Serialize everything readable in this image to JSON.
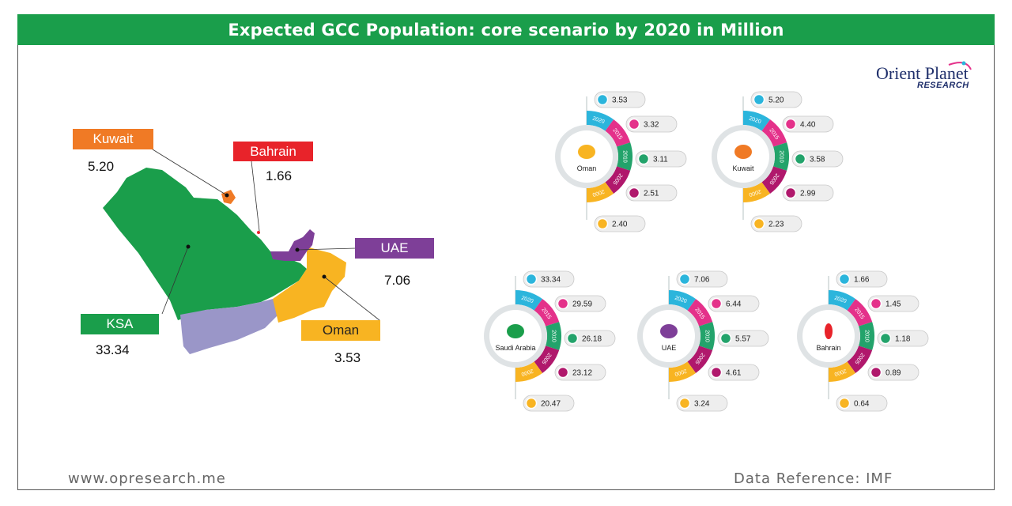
{
  "title": "Expected GCC Population: core scenario by 2020 in Million",
  "logo": {
    "main": "Orient Planet",
    "sub": "RESEARCH"
  },
  "map_labels": [
    {
      "name": "Kuwait",
      "value": "5.20",
      "color": "#f07a25"
    },
    {
      "name": "Bahrain",
      "value": "1.66",
      "color": "#e8232a"
    },
    {
      "name": "UAE",
      "value": "7.06",
      "color": "#7e3f98"
    },
    {
      "name": "KSA",
      "value": "33.34",
      "color": "#1a9e4b"
    },
    {
      "name": "Oman",
      "value": "3.53",
      "color": "#f8b422"
    }
  ],
  "years": [
    "2020",
    "2015",
    "2010",
    "2005",
    "2000"
  ],
  "year_colors": [
    "#2bb5dc",
    "#e4318a",
    "#23a36b",
    "#b0186c",
    "#f8b422"
  ],
  "chart_data": {
    "type": "table",
    "columns": [
      "2020",
      "2015",
      "2010",
      "2005",
      "2000"
    ],
    "rows": [
      {
        "country": "Oman",
        "values": [
          "3.53",
          "3.32",
          "3.11",
          "2.51",
          "2.40"
        ]
      },
      {
        "country": "Kuwait",
        "values": [
          "5.20",
          "4.40",
          "3.58",
          "2.99",
          "2.23"
        ]
      },
      {
        "country": "Saudi Arabia",
        "values": [
          "33.34",
          "29.59",
          "26.18",
          "23.12",
          "20.47"
        ]
      },
      {
        "country": "UAE",
        "values": [
          "7.06",
          "6.44",
          "5.57",
          "4.61",
          "3.24"
        ]
      },
      {
        "country": "Bahrain",
        "values": [
          "1.66",
          "1.45",
          "1.18",
          "0.89",
          "0.64"
        ]
      }
    ]
  },
  "footer": {
    "website": "www.opresearch.me",
    "source": "Data Reference: IMF"
  }
}
